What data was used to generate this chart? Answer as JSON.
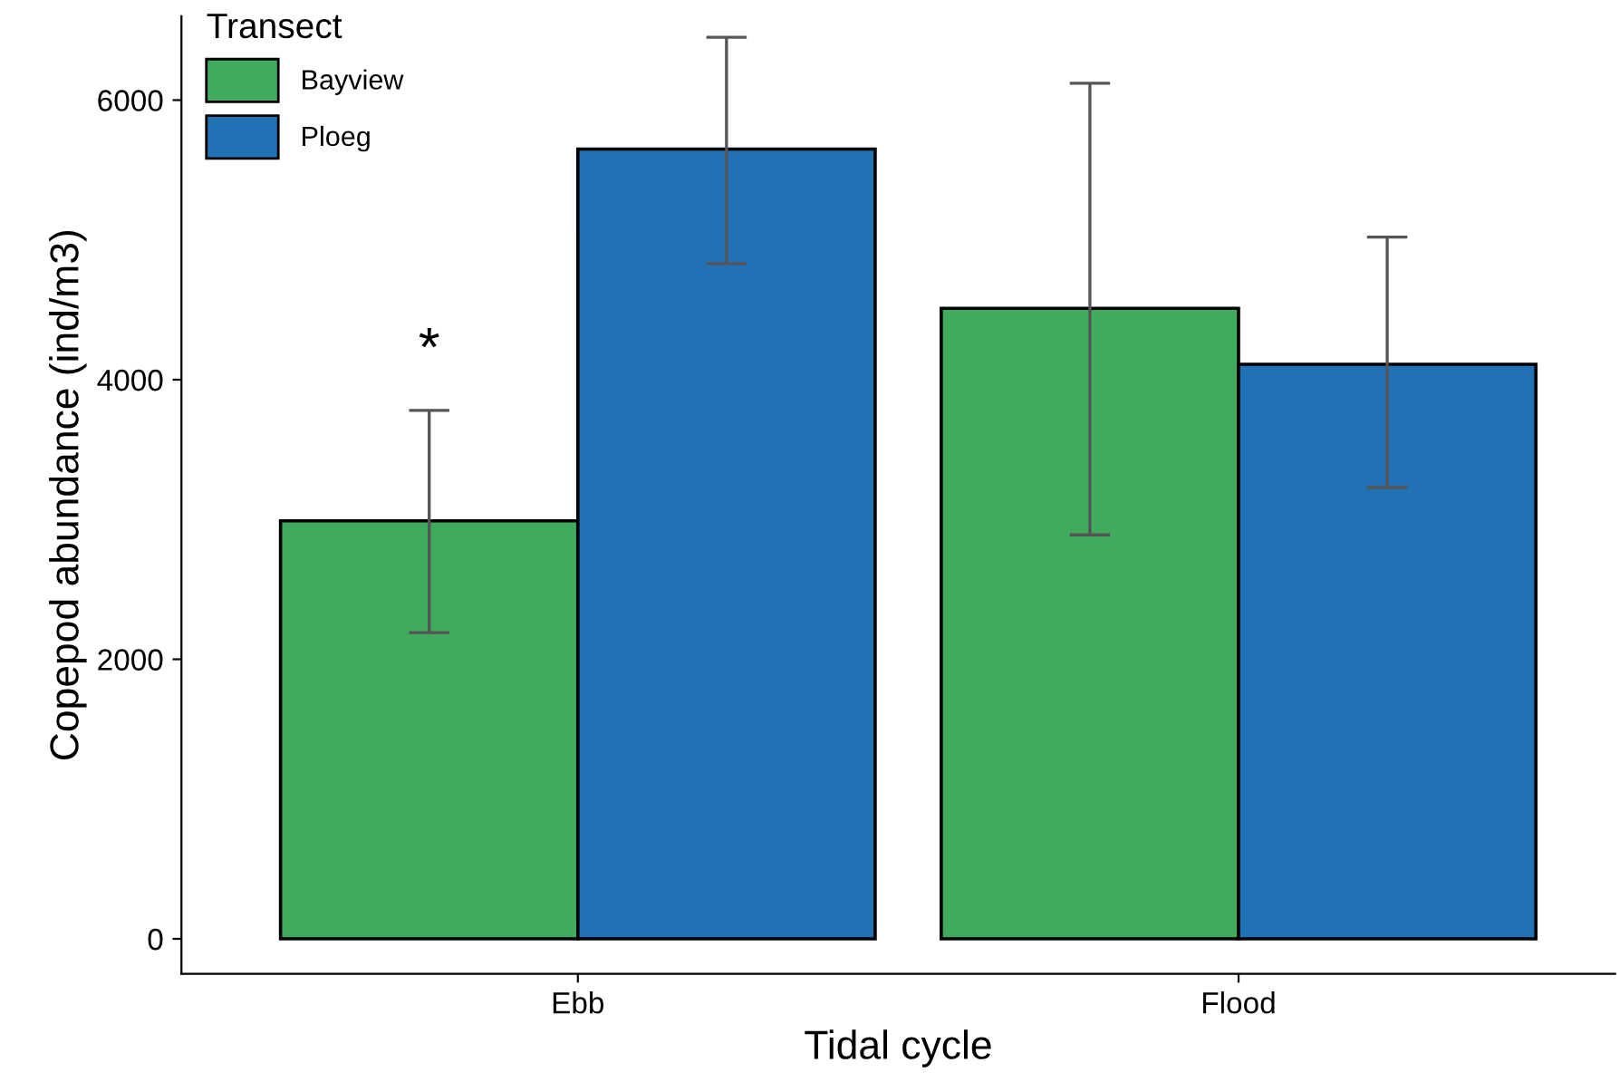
{
  "chart_data": {
    "type": "bar",
    "xlabel": "Tidal cycle",
    "ylabel": "Copepod abundance (ind/m3)",
    "legend_title": "Transect",
    "categories": [
      "Ebb",
      "Flood"
    ],
    "series": [
      {
        "name": "Bayview",
        "color": "#41ab5d",
        "values": [
          2990,
          4510
        ],
        "errors": [
          [
            2190,
            3780
          ],
          [
            2890,
            6120
          ]
        ]
      },
      {
        "name": "Ploeg",
        "color": "#2171b5",
        "values": [
          5650,
          4110
        ],
        "errors": [
          [
            4830,
            6450
          ],
          [
            3230,
            5020
          ]
        ]
      }
    ],
    "ylim": [
      -250,
      6600
    ],
    "yticks": [
      0,
      2000,
      4000,
      6000
    ],
    "grid": false,
    "legend": "top left",
    "annotations": [
      {
        "text": "*",
        "x": "Ebb",
        "y": 4200
      }
    ]
  }
}
